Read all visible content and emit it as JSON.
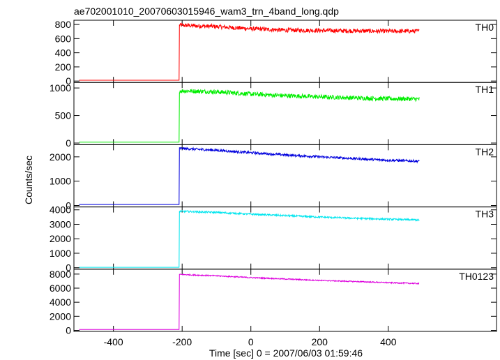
{
  "chart_data": {
    "type": "line",
    "title": "ae702001010_20070603015946_wam3_trn_4band_long.qdp",
    "xlabel": "Time [sec] 0 = 2007/06/03 01:59:46",
    "ylabel": "Counts/sec",
    "xlim": [
      -515,
      715
    ],
    "x_ticks": [
      -400,
      -200,
      0,
      200,
      400
    ],
    "trigger_time": -208,
    "data_start": -500,
    "data_end": 490,
    "grid": false,
    "series": [
      {
        "name": "TH0",
        "color": "#ff0000",
        "ylim": [
          -20,
          860
        ],
        "y_ticks": [
          0,
          200,
          400,
          600,
          800
        ],
        "pre_level": 12,
        "peak": 790,
        "end": 705,
        "noise": 30,
        "points": [
          [
            -500,
            12
          ],
          [
            -209,
            12
          ],
          [
            -208,
            790
          ],
          [
            -100,
            770
          ],
          [
            0,
            740
          ],
          [
            100,
            720
          ],
          [
            200,
            715
          ],
          [
            300,
            710
          ],
          [
            400,
            705
          ],
          [
            490,
            705
          ]
        ]
      },
      {
        "name": "TH1",
        "color": "#00ee00",
        "ylim": [
          -30,
          1100
        ],
        "y_ticks": [
          0,
          500,
          1000
        ],
        "pre_level": 15,
        "peak": 950,
        "end": 800,
        "noise": 40,
        "points": [
          [
            -500,
            15
          ],
          [
            -209,
            15
          ],
          [
            -208,
            950
          ],
          [
            -100,
            930
          ],
          [
            0,
            890
          ],
          [
            100,
            860
          ],
          [
            200,
            840
          ],
          [
            300,
            820
          ],
          [
            400,
            805
          ],
          [
            490,
            800
          ]
        ]
      },
      {
        "name": "TH2",
        "color": "#0000dd",
        "ylim": [
          -60,
          2500
        ],
        "y_ticks": [
          0,
          1000,
          2000
        ],
        "pre_level": 40,
        "peak": 2350,
        "end": 1820,
        "noise": 50,
        "points": [
          [
            -500,
            40
          ],
          [
            -209,
            40
          ],
          [
            -208,
            2350
          ],
          [
            -100,
            2270
          ],
          [
            0,
            2170
          ],
          [
            100,
            2080
          ],
          [
            200,
            2000
          ],
          [
            300,
            1930
          ],
          [
            400,
            1860
          ],
          [
            490,
            1820
          ]
        ]
      },
      {
        "name": "TH3",
        "color": "#00e5ee",
        "ylim": [
          -100,
          4200
        ],
        "y_ticks": [
          0,
          1000,
          2000,
          3000,
          4000
        ],
        "pre_level": 30,
        "peak": 3900,
        "end": 3300,
        "noise": 60,
        "points": [
          [
            -500,
            30
          ],
          [
            -209,
            30
          ],
          [
            -208,
            3900
          ],
          [
            -100,
            3820
          ],
          [
            0,
            3700
          ],
          [
            100,
            3600
          ],
          [
            200,
            3500
          ],
          [
            300,
            3420
          ],
          [
            400,
            3350
          ],
          [
            490,
            3300
          ]
        ]
      },
      {
        "name": "TH0123",
        "color": "#dd00dd",
        "ylim": [
          -150,
          8700
        ],
        "y_ticks": [
          0,
          2000,
          4000,
          6000,
          8000
        ],
        "pre_level": 120,
        "peak": 7950,
        "end": 6650,
        "noise": 80,
        "points": [
          [
            -500,
            120
          ],
          [
            -209,
            120
          ],
          [
            -208,
            7950
          ],
          [
            -100,
            7750
          ],
          [
            0,
            7500
          ],
          [
            100,
            7300
          ],
          [
            200,
            7100
          ],
          [
            300,
            6950
          ],
          [
            400,
            6780
          ],
          [
            490,
            6650
          ]
        ]
      }
    ]
  }
}
